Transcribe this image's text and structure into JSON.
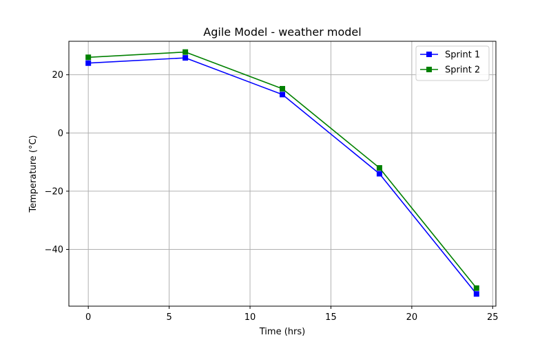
{
  "chart_data": {
    "type": "line",
    "title": "Agile Model - weather model",
    "xlabel": "Time (hrs)",
    "ylabel": "Temperature (°C)",
    "xlim": [
      -1.2,
      25.2
    ],
    "ylim": [
      -59.5,
      31.5
    ],
    "xticks": [
      0,
      5,
      10,
      15,
      20,
      25
    ],
    "xtick_labels": [
      "0",
      "5",
      "10",
      "15",
      "20",
      "25"
    ],
    "yticks": [
      -40,
      -20,
      0,
      20
    ],
    "ytick_labels": [
      "−40",
      "−20",
      "0",
      "20"
    ],
    "grid": true,
    "legend_position": "top-right",
    "marker": "square",
    "x": [
      0,
      6,
      12,
      18,
      24
    ],
    "series": [
      {
        "name": "Sprint 1",
        "color": "#0000ff",
        "values": [
          24,
          25.8,
          13.2,
          -14,
          -55.3
        ]
      },
      {
        "name": "Sprint 2",
        "color": "#008000",
        "values": [
          26,
          27.8,
          15.2,
          -12,
          -53.3
        ]
      }
    ]
  }
}
